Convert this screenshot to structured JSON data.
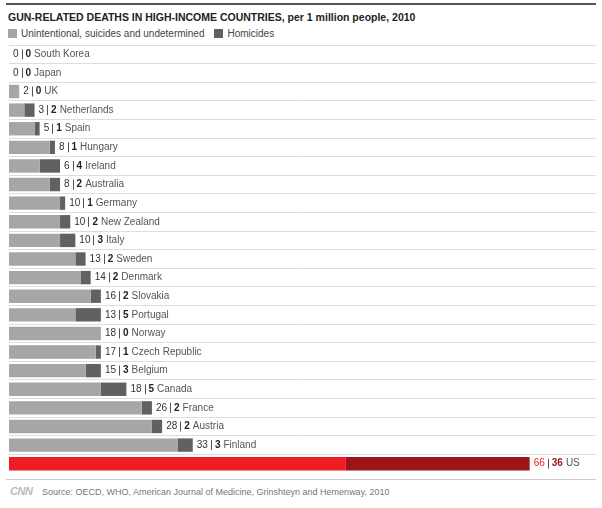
{
  "chart_data": {
    "type": "bar",
    "title": "GUN-RELATED DEATHS IN HIGH-INCOME COUNTRIES, per 1 million people, 2010",
    "orientation": "horizontal",
    "stacked": true,
    "data_labels": true,
    "tick_labels": false,
    "grid": true,
    "legend": "top-left",
    "xlim": [
      0,
      115
    ],
    "categories": [
      "South Korea",
      "Japan",
      "UK",
      "Netherlands",
      "Spain",
      "Hungary",
      "Ireland",
      "Australia",
      "Germany",
      "New Zealand",
      "Italy",
      "Sweden",
      "Denmark",
      "Slovakia",
      "Portugal",
      "Norway",
      "Czech Republic",
      "Belgium",
      "Canada",
      "France",
      "Austria",
      "Finland",
      "US"
    ],
    "series": [
      {
        "name": "Unintentional, suicides and undetermined",
        "color": "#a6a6a6",
        "colors": [
          "#a6a6a6",
          "#a6a6a6",
          "#a6a6a6",
          "#a6a6a6",
          "#a6a6a6",
          "#a6a6a6",
          "#a6a6a6",
          "#a6a6a6",
          "#a6a6a6",
          "#a6a6a6",
          "#a6a6a6",
          "#a6a6a6",
          "#a6a6a6",
          "#a6a6a6",
          "#a6a6a6",
          "#a6a6a6",
          "#a6a6a6",
          "#a6a6a6",
          "#a6a6a6",
          "#a6a6a6",
          "#a6a6a6",
          "#a6a6a6",
          "#ee1c25"
        ],
        "values": [
          0,
          0,
          2,
          3,
          5,
          8,
          6,
          8,
          10,
          10,
          10,
          13,
          14,
          16,
          13,
          18,
          17,
          15,
          18,
          26,
          28,
          33,
          66
        ]
      },
      {
        "name": "Homicides",
        "color": "#616161",
        "colors": [
          "#616161",
          "#616161",
          "#616161",
          "#616161",
          "#616161",
          "#616161",
          "#616161",
          "#616161",
          "#616161",
          "#616161",
          "#616161",
          "#616161",
          "#616161",
          "#616161",
          "#616161",
          "#616161",
          "#616161",
          "#616161",
          "#616161",
          "#616161",
          "#616161",
          "#616161",
          "#9e1414"
        ],
        "values": [
          0,
          0,
          0,
          2,
          1,
          1,
          4,
          2,
          1,
          2,
          3,
          2,
          2,
          2,
          5,
          0,
          1,
          3,
          5,
          2,
          2,
          3,
          36
        ]
      }
    ],
    "annotations": [
      "CNN",
      "Source: OECD, WHO, American Journal of Medicine, Grinshteyn and Hemenway, 2010"
    ]
  }
}
